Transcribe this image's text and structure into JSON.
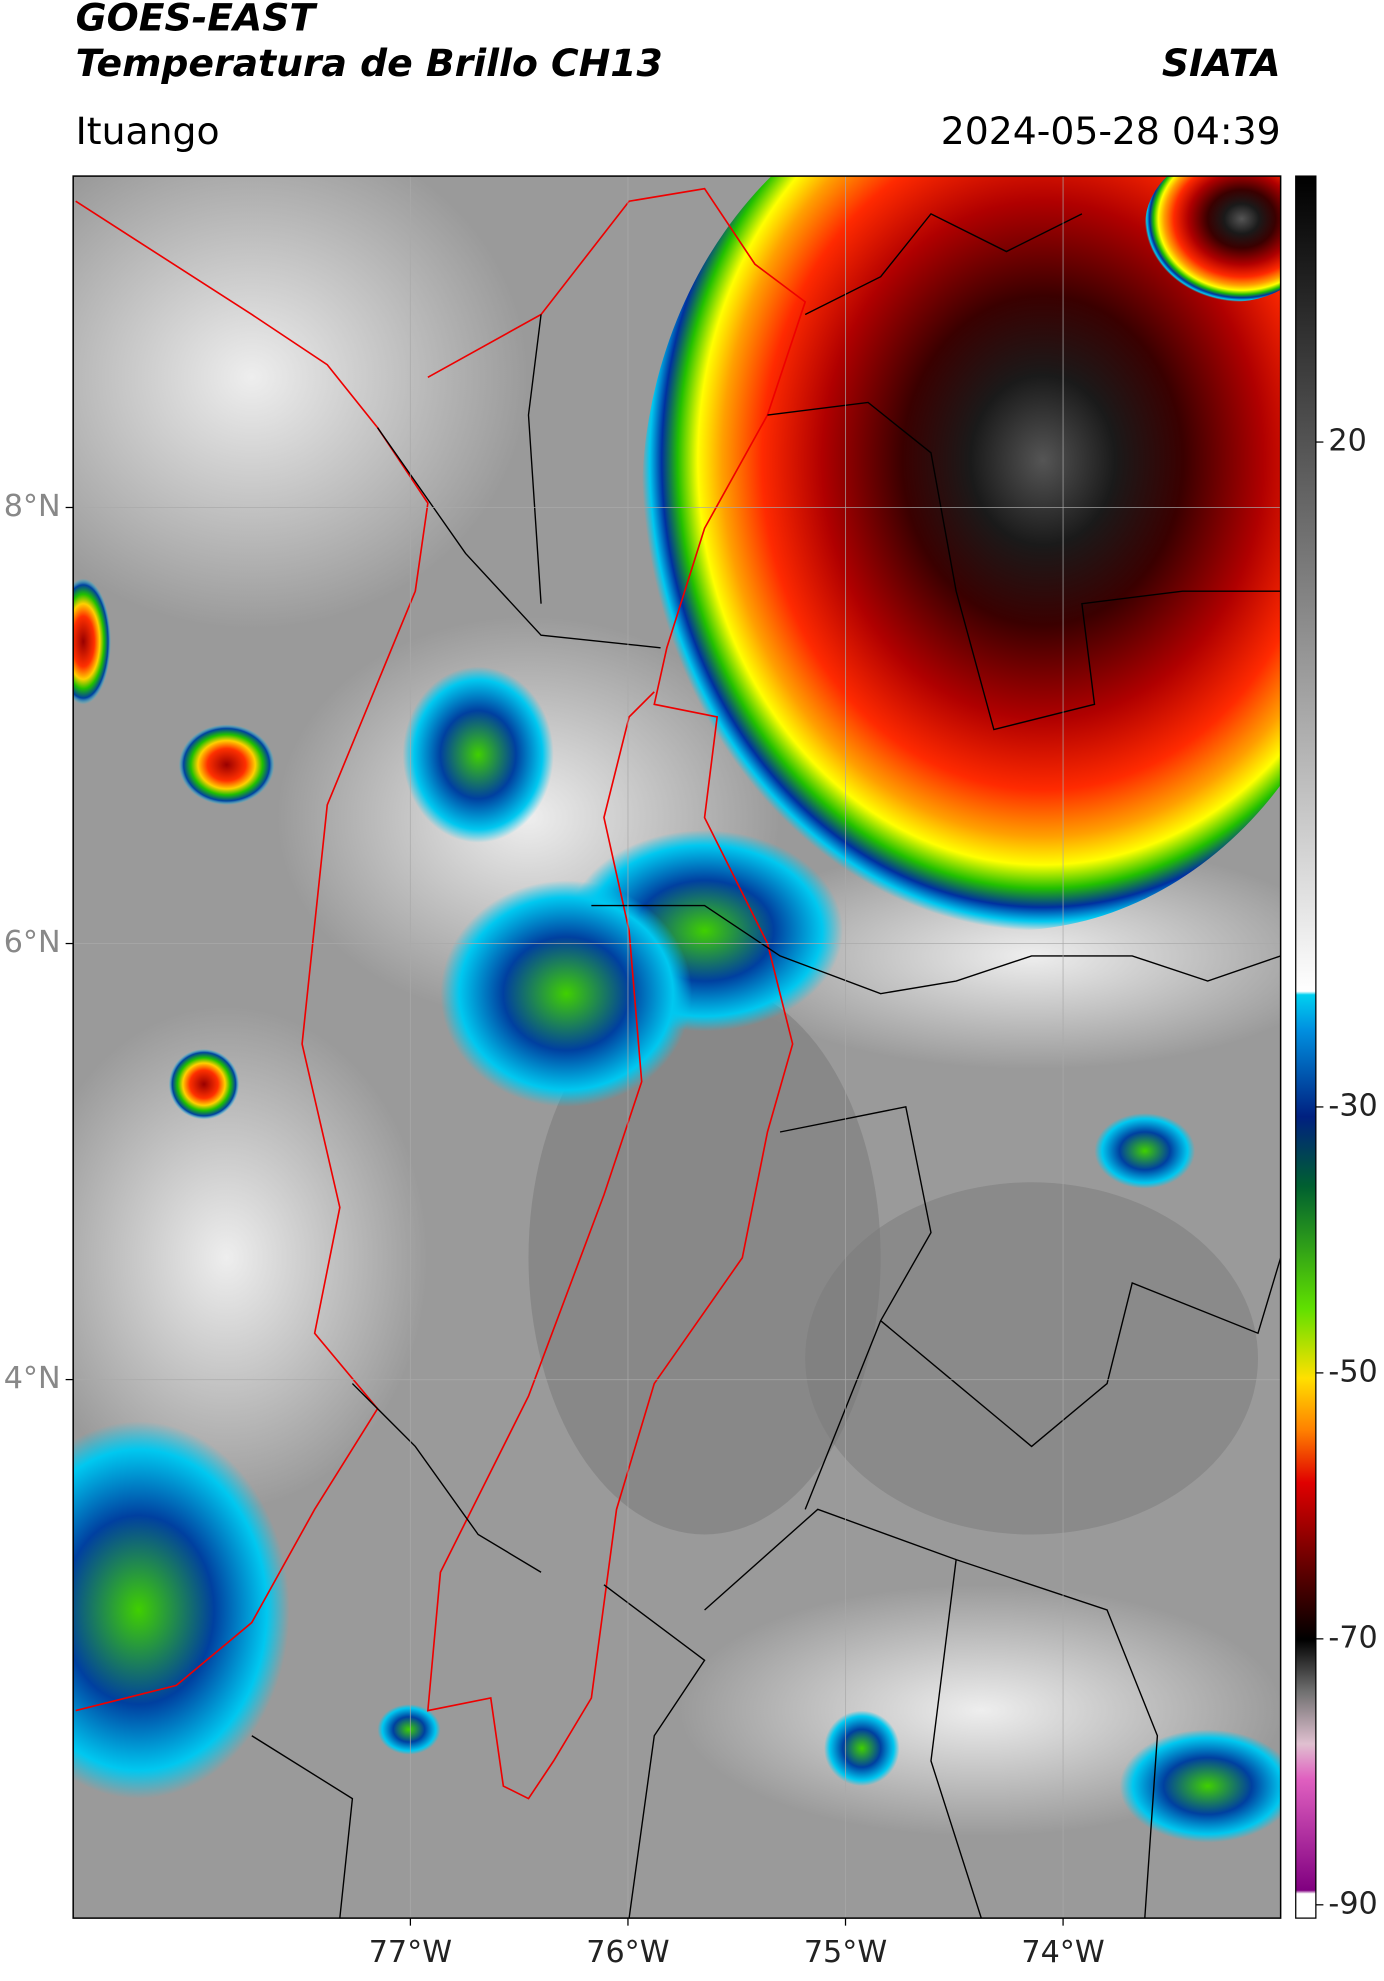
{
  "header": {
    "title": "GOES-EAST",
    "subtitle": "Temperatura de Brillo CH13",
    "source": "SIATA",
    "location": "Ituango",
    "timestamp": "2024-05-28 04:39"
  },
  "map": {
    "xlim": [
      -78.55,
      -73.0
    ],
    "ylim": [
      1.53,
      9.52
    ],
    "xticks": [
      {
        "value": -77,
        "label": "77°W"
      },
      {
        "value": -76,
        "label": "76°W"
      },
      {
        "value": -75,
        "label": "75°W"
      },
      {
        "value": -74,
        "label": "74°W"
      }
    ],
    "yticks": [
      {
        "value": 4,
        "label": "4°N"
      },
      {
        "value": 6,
        "label": "6°N"
      },
      {
        "value": 8,
        "label": "8°N"
      }
    ],
    "grid": true
  },
  "colorbar": {
    "lim": [
      -91,
      40
    ],
    "ticks": [
      -90,
      -70,
      -50,
      -30,
      20
    ]
  }
}
